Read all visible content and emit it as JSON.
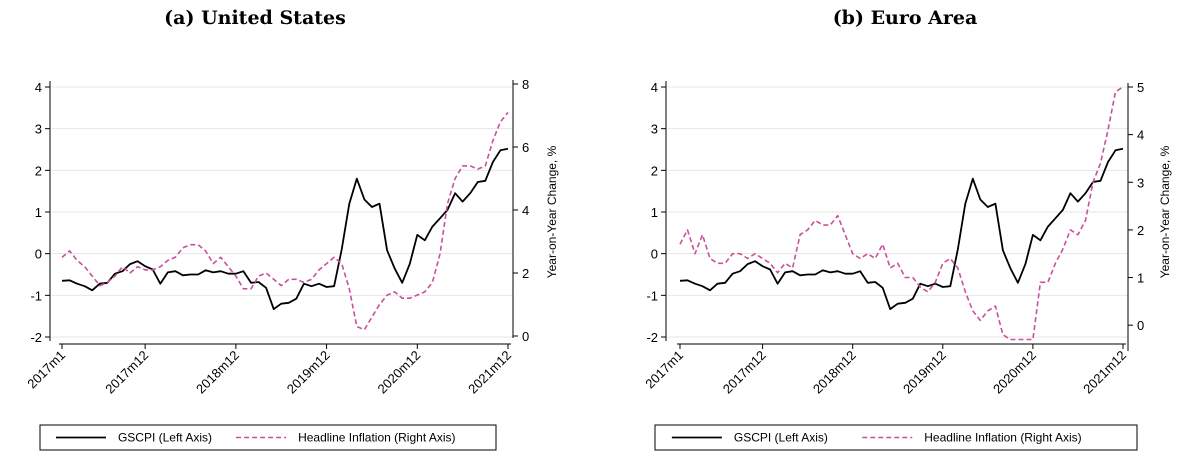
{
  "colors": {
    "gscpi": "#000000",
    "inflation": "#c9509a",
    "grid": "#e6e6e6",
    "axis": "#000000"
  },
  "chart_data": [
    {
      "type": "line",
      "title": "(a) United States",
      "xlabel": "",
      "ylabel_left": "",
      "ylabel_right": "Year-on-Year Change, %",
      "x_ticks": [
        "2017m1",
        "2017m12",
        "2018m12",
        "2019m12",
        "2020m12",
        "2021m12"
      ],
      "x_tick_index": [
        0,
        11,
        23,
        35,
        47,
        59
      ],
      "ylim_left": [
        -2,
        4
      ],
      "yticks_left": [
        -2,
        -1,
        0,
        1,
        2,
        3,
        4
      ],
      "ylim_right": [
        0,
        8
      ],
      "yticks_right": [
        0,
        2,
        4,
        6,
        8
      ],
      "grid": true,
      "legend": "bottom",
      "series": [
        {
          "name": "GSCPI (Left Axis)",
          "axis": "left",
          "style": "solid",
          "values": [
            -0.65,
            -0.64,
            -0.72,
            -0.78,
            -0.88,
            -0.72,
            -0.7,
            -0.48,
            -0.42,
            -0.25,
            -0.18,
            -0.3,
            -0.38,
            -0.72,
            -0.45,
            -0.42,
            -0.52,
            -0.5,
            -0.5,
            -0.4,
            -0.45,
            -0.42,
            -0.48,
            -0.48,
            -0.42,
            -0.7,
            -0.68,
            -0.82,
            -1.33,
            -1.2,
            -1.18,
            -1.08,
            -0.72,
            -0.78,
            -0.72,
            -0.8,
            -0.78,
            0.1,
            1.2,
            1.8,
            1.3,
            1.12,
            1.2,
            0.08,
            -0.35,
            -0.7,
            -0.25,
            0.45,
            0.32,
            0.65,
            0.85,
            1.05,
            1.45,
            1.25,
            1.45,
            1.72,
            1.75,
            2.2,
            2.48,
            2.52
          ]
        },
        {
          "name": "Headline Inflation (Right Axis)",
          "axis": "right",
          "style": "dashed",
          "values": [
            2.5,
            2.7,
            2.4,
            2.2,
            1.9,
            1.6,
            1.7,
            1.9,
            2.2,
            2.0,
            2.2,
            2.1,
            2.1,
            2.2,
            2.4,
            2.5,
            2.8,
            2.9,
            2.9,
            2.7,
            2.3,
            2.5,
            2.2,
            1.9,
            1.5,
            1.5,
            1.9,
            2.0,
            1.8,
            1.6,
            1.8,
            1.8,
            1.7,
            1.8,
            2.1,
            2.3,
            2.5,
            2.3,
            1.5,
            0.3,
            0.2,
            0.6,
            1.0,
            1.3,
            1.4,
            1.2,
            1.2,
            1.3,
            1.4,
            1.7,
            2.6,
            4.2,
            5.0,
            5.4,
            5.4,
            5.3,
            5.4,
            6.2,
            6.8,
            7.1
          ]
        }
      ]
    },
    {
      "type": "line",
      "title": "(b) Euro Area",
      "xlabel": "",
      "ylabel_left": "",
      "ylabel_right": "Year-on-Year Change, %",
      "x_ticks": [
        "2017m1",
        "2017m12",
        "2018m12",
        "2019m12",
        "2020m12",
        "2021m12"
      ],
      "x_tick_index": [
        0,
        11,
        23,
        35,
        47,
        59
      ],
      "ylim_left": [
        -2,
        4
      ],
      "yticks_left": [
        -2,
        -1,
        0,
        1,
        2,
        3,
        4
      ],
      "ylim_right": [
        -0.5,
        5
      ],
      "yticks_right": [
        0,
        1,
        2,
        3,
        4,
        5
      ],
      "grid": true,
      "legend": "bottom",
      "series": [
        {
          "name": "GSCPI (Left Axis)",
          "axis": "left",
          "style": "solid",
          "values": [
            -0.65,
            -0.64,
            -0.72,
            -0.78,
            -0.88,
            -0.72,
            -0.7,
            -0.48,
            -0.42,
            -0.25,
            -0.18,
            -0.3,
            -0.38,
            -0.72,
            -0.45,
            -0.42,
            -0.52,
            -0.5,
            -0.5,
            -0.4,
            -0.45,
            -0.42,
            -0.48,
            -0.48,
            -0.42,
            -0.7,
            -0.68,
            -0.82,
            -1.33,
            -1.2,
            -1.18,
            -1.08,
            -0.72,
            -0.78,
            -0.72,
            -0.8,
            -0.78,
            0.1,
            1.2,
            1.8,
            1.3,
            1.12,
            1.2,
            0.08,
            -0.35,
            -0.7,
            -0.25,
            0.45,
            0.32,
            0.65,
            0.85,
            1.05,
            1.45,
            1.25,
            1.45,
            1.72,
            1.75,
            2.2,
            2.48,
            2.52
          ]
        },
        {
          "name": "Headline Inflation (Right Axis)",
          "axis": "right",
          "style": "dashed",
          "values": [
            1.7,
            2.0,
            1.5,
            1.9,
            1.4,
            1.3,
            1.3,
            1.5,
            1.5,
            1.4,
            1.5,
            1.4,
            1.3,
            1.1,
            1.3,
            1.2,
            1.9,
            2.0,
            2.2,
            2.1,
            2.1,
            2.3,
            1.9,
            1.5,
            1.4,
            1.5,
            1.4,
            1.7,
            1.2,
            1.3,
            1.0,
            1.0,
            0.8,
            0.7,
            0.9,
            1.3,
            1.4,
            1.2,
            0.7,
            0.3,
            0.1,
            0.3,
            0.4,
            -0.2,
            -0.3,
            -0.3,
            -0.3,
            -0.3,
            0.9,
            0.9,
            1.3,
            1.6,
            2.0,
            1.9,
            2.2,
            3.0,
            3.4,
            4.1,
            4.9,
            5.0
          ]
        }
      ]
    }
  ]
}
